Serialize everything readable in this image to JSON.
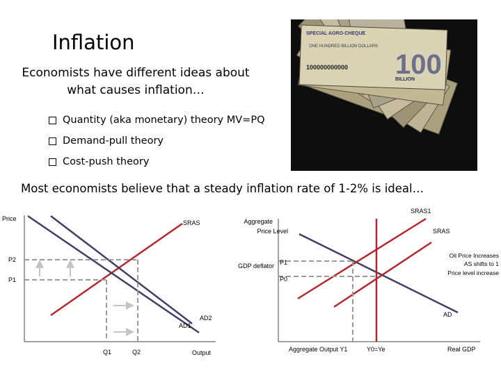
{
  "slide": {
    "title": "Inflation",
    "intro": "Economists have different ideas about what causes inflation…",
    "bullets": [
      "Quantity (aka monetary) theory MV=PQ",
      "Demand-pull theory",
      "Cost-push theory"
    ],
    "summary": "Most economists believe that a steady inflation rate of 1-2% is ideal…"
  },
  "photo": {
    "banknote_header": "SPECIAL AGRO-CHEQUE",
    "banknote_denomination": "100",
    "banknote_text": "ONE HUNDRED BILLION DOLLARS",
    "banknote_amount": "100000000000",
    "banknote_word": "BILLION"
  },
  "graph_left": {
    "y_label": "Price",
    "x_label": "Output",
    "sras": "SRAS",
    "ad1": "AD1",
    "ad2": "AD2",
    "p1": "P1",
    "p2": "P2",
    "q1": "Q1",
    "q2": "Q2"
  },
  "graph_right": {
    "y_label_1": "Aggregate",
    "y_label_2": "Price Level",
    "deflator": "GDP deflator",
    "x_label": "Aggregate Output  Y1",
    "ye_label": "Y0=Ye",
    "real_gdp": "Real GDP",
    "sras1": "SRAS1",
    "sras": "SRAS",
    "ad": "AD",
    "p1": "P1",
    "p0": "P0",
    "note_1": "Oil Price Increases",
    "note_2": "AS shifts to 1",
    "note_3": "Price level increase"
  },
  "colors": {
    "curve_blue": "#3d3f64",
    "curve_red": "#b3262d",
    "dashed_gray": "#9a9a9a",
    "arrow_gray": "#c4c4c4"
  }
}
